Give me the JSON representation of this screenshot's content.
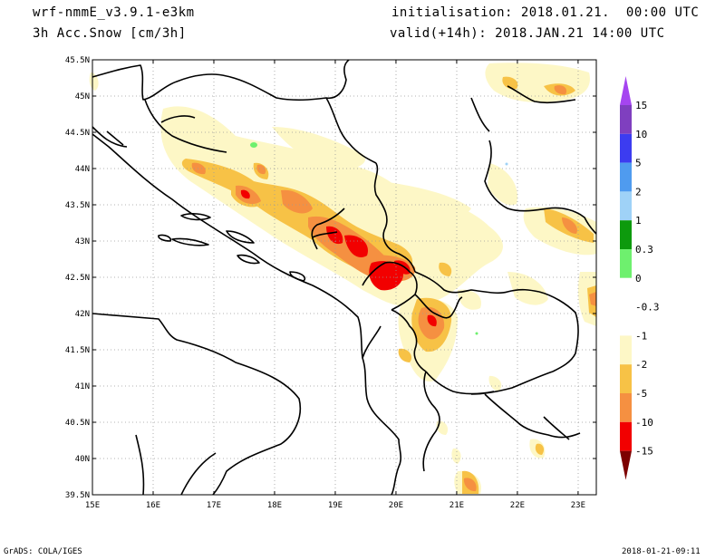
{
  "header": {
    "model": "wrf-nmmE_v3.9.1-e3km",
    "variable": "3h Acc.Snow [cm/3h]",
    "initialisation": "initialisation: 2018.01.21.  00:00 UTC",
    "valid": "valid(+14h): 2018.JAN.21 14:00 UTC"
  },
  "footer": {
    "left": "GrADS: COLA/IGES",
    "right": "2018-01-21-09:11"
  },
  "map": {
    "lon_range": [
      15,
      23.3
    ],
    "lat_range": [
      39.5,
      45.5
    ],
    "lon_ticks": [
      "15E",
      "16E",
      "17E",
      "18E",
      "19E",
      "20E",
      "21E",
      "22E",
      "23E"
    ],
    "lat_ticks": [
      "39.5N",
      "40N",
      "40.5N",
      "41N",
      "41.5N",
      "42N",
      "42.5N",
      "43N",
      "43.5N",
      "44N",
      "44.5N",
      "45N",
      "45.5N"
    ],
    "grid": true
  },
  "colorbar": {
    "levels": [
      {
        "label": "15",
        "color": "#7f3fbf"
      },
      {
        "label": "10",
        "color": "#3c3cf0"
      },
      {
        "label": "5",
        "color": "#4f9bef"
      },
      {
        "label": "2",
        "color": "#9fd2f7"
      },
      {
        "label": "1",
        "color": "#0d9a0d"
      },
      {
        "label": "0.3",
        "color": "#6ef06e"
      },
      {
        "label": "0",
        "color": "#ffffff"
      },
      {
        "label": "-0.3",
        "color": "#ffffff"
      },
      {
        "label": "-1",
        "color": "#fdf7c6"
      },
      {
        "label": "-2",
        "color": "#f7c246"
      },
      {
        "label": "-5",
        "color": "#f59041"
      },
      {
        "label": "-10",
        "color": "#f20000"
      },
      {
        "label": "-15",
        "color": "#c00000"
      }
    ],
    "top_arrow_color": "#a545f0",
    "bottom_arrow_color": "#7d0000"
  }
}
